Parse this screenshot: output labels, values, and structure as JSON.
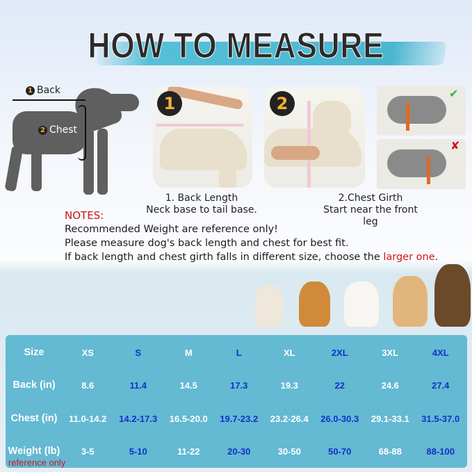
{
  "title": "HOW TO MEASURE",
  "diagram": {
    "back_num": "1",
    "back_label": "Back",
    "chest_num": "2",
    "chest_label": "Chest"
  },
  "steps": [
    {
      "badge": "1",
      "title": "1. Back Length",
      "desc": "Neck base to tail base."
    },
    {
      "badge": "2",
      "title": "2.Chest Girth",
      "desc": "Start near the front leg"
    }
  ],
  "examples": [
    {
      "icon": "check-icon",
      "color": "#3cb043"
    },
    {
      "icon": "cross-icon",
      "color": "#d0141a"
    }
  ],
  "notes": {
    "heading": "NOTES:",
    "lines": [
      "Recommended Weight are reference only!",
      "Please measure dog's back length and chest for best fit."
    ],
    "line3_prefix": "If back length and chest girth falls in different size, choose the ",
    "line3_highlight": "larger one",
    "line3_suffix": "."
  },
  "table": {
    "rows": [
      {
        "header": "Size",
        "cells": [
          "XS",
          "S",
          "M",
          "L",
          "XL",
          "2XL",
          "3XL",
          "4XL"
        ]
      },
      {
        "header": "Back  (in)",
        "cells": [
          "8.6",
          "11.4",
          "14.5",
          "17.3",
          "19.3",
          "22",
          "24.6",
          "27.4"
        ]
      },
      {
        "header": "Chest  (in)",
        "cells": [
          "11.0-14.2",
          "14.2-17.3",
          "16.5-20.0",
          "19.7-23.2",
          "23.2-26.4",
          "26.0-30.3",
          "29.1-33.1",
          "31.5-37.0"
        ]
      },
      {
        "header": "Weight  (lb)",
        "cells": [
          "3-5",
          "5-10",
          "11-22",
          "20-30",
          "30-50",
          "50-70",
          "68-88",
          "88-100"
        ]
      }
    ],
    "footnote": "reference only",
    "colors": {
      "background": "#64b9d3",
      "white_text": "#ffffff",
      "blue_text": "#1232c8"
    }
  }
}
